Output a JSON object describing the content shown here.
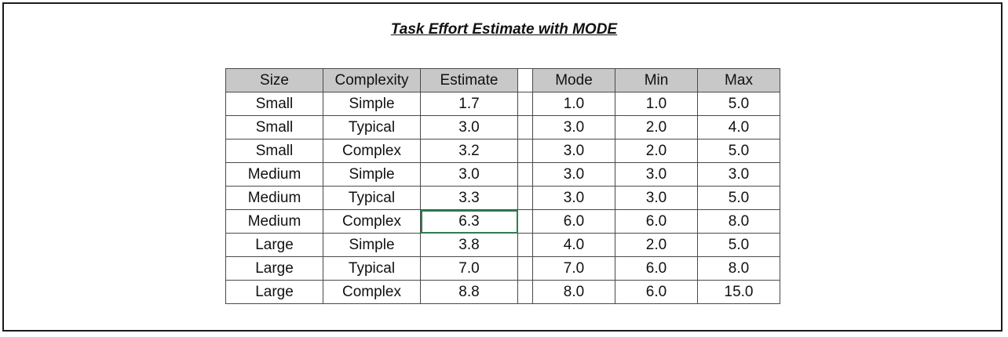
{
  "title": "Task Effort Estimate with MODE",
  "table": {
    "headers": [
      "Size",
      "Complexity",
      "Estimate",
      "",
      "Mode",
      "Min",
      "Max"
    ],
    "rows": [
      {
        "size": "Small",
        "complexity": "Simple",
        "estimate": "1.7",
        "mode": "1.0",
        "min": "1.0",
        "max": "5.0"
      },
      {
        "size": "Small",
        "complexity": "Typical",
        "estimate": "3.0",
        "mode": "3.0",
        "min": "2.0",
        "max": "4.0"
      },
      {
        "size": "Small",
        "complexity": "Complex",
        "estimate": "3.2",
        "mode": "3.0",
        "min": "2.0",
        "max": "5.0"
      },
      {
        "size": "Medium",
        "complexity": "Simple",
        "estimate": "3.0",
        "mode": "3.0",
        "min": "3.0",
        "max": "3.0"
      },
      {
        "size": "Medium",
        "complexity": "Typical",
        "estimate": "3.3",
        "mode": "3.0",
        "min": "3.0",
        "max": "5.0"
      },
      {
        "size": "Medium",
        "complexity": "Complex",
        "estimate": "6.3",
        "mode": "6.0",
        "min": "6.0",
        "max": "8.0"
      },
      {
        "size": "Large",
        "complexity": "Simple",
        "estimate": "3.8",
        "mode": "4.0",
        "min": "2.0",
        "max": "5.0"
      },
      {
        "size": "Large",
        "complexity": "Typical",
        "estimate": "7.0",
        "mode": "7.0",
        "min": "6.0",
        "max": "8.0"
      },
      {
        "size": "Large",
        "complexity": "Complex",
        "estimate": "8.8",
        "mode": "8.0",
        "min": "6.0",
        "max": "15.0"
      }
    ]
  },
  "colors": {
    "header_fill": "#c8c8c8",
    "selected_cell_border": "#2e7d4f",
    "grid": "#4a4a4a"
  }
}
